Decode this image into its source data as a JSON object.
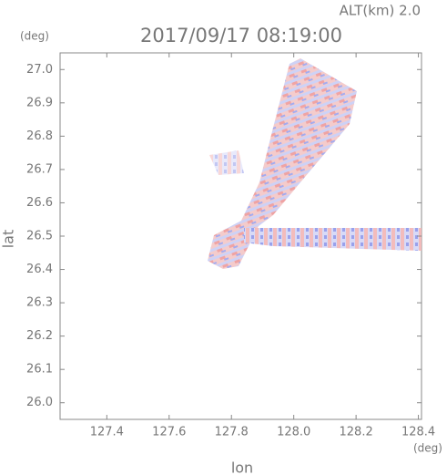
{
  "chart_data": {
    "type": "map",
    "title": "2017/09/17 08:19:00",
    "subtitle": "ALT(km) 2.0",
    "x_label": "lon",
    "x_unit": "(deg)",
    "y_label": "lat",
    "y_unit": "(deg)",
    "xlim": [
      127.25,
      128.41
    ],
    "xticks": [
      127.4,
      127.6,
      127.8,
      {
        "value": 128.0,
        "label": "128.0"
      },
      128.2,
      128.4
    ],
    "ylim": [
      25.95,
      27.05
    ],
    "yticks": [
      {
        "value": 26.0,
        "label": "26.0"
      },
      26.1,
      26.2,
      26.3,
      26.4,
      26.5,
      26.6,
      26.7,
      26.8,
      26.9,
      {
        "value": 27.0,
        "label": "27.0"
      }
    ]
  }
}
